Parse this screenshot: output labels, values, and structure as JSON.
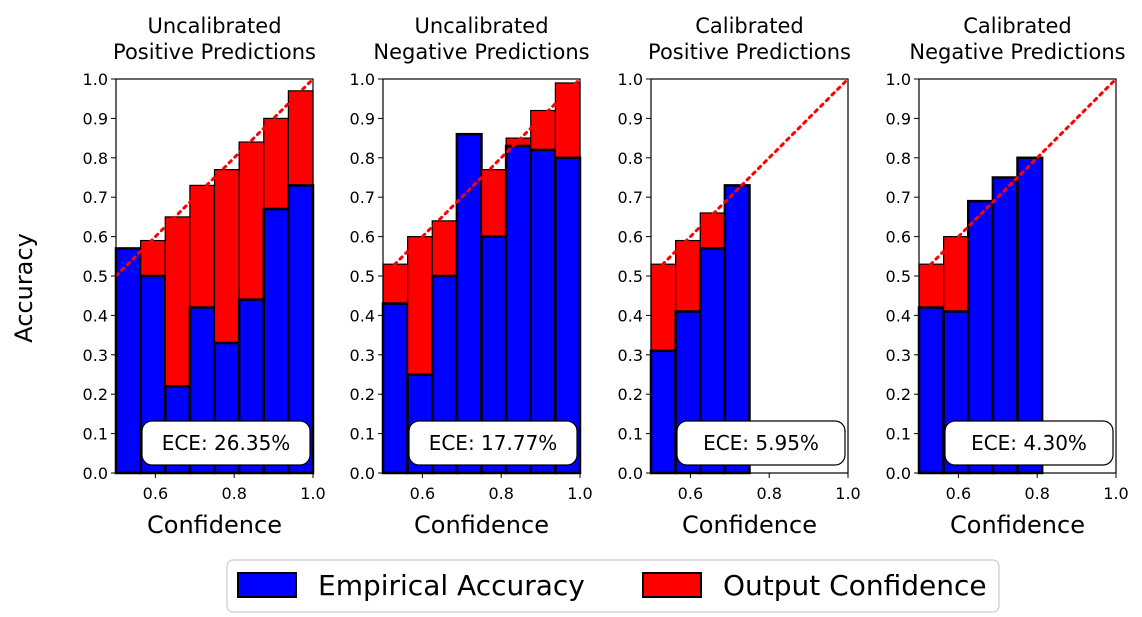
{
  "figure": {
    "ylabel": "Accuracy",
    "legend": {
      "placement": "bottom-center",
      "entries": [
        {
          "label": "Empirical Accuracy",
          "color": "#0000ff"
        },
        {
          "label": "Output Confidence",
          "color": "#ff0000"
        }
      ]
    }
  },
  "chart_data": [
    {
      "type": "bar",
      "title_line1": "Uncalibrated",
      "title_line2": "Positive Predictions",
      "xlabel": "Confidence",
      "xlim": [
        0.5,
        1.0
      ],
      "ylim": [
        0.0,
        1.0
      ],
      "bin_edges": [
        0.5,
        0.5625,
        0.625,
        0.6875,
        0.75,
        0.8125,
        0.875,
        0.9375,
        1.0
      ],
      "series": [
        {
          "name": "Empirical Accuracy",
          "values": [
            0.57,
            0.5,
            0.22,
            0.42,
            0.33,
            0.44,
            0.67,
            0.73
          ]
        },
        {
          "name": "Output Confidence",
          "values": [
            0.55,
            0.59,
            0.65,
            0.73,
            0.77,
            0.84,
            0.9,
            0.97
          ]
        }
      ],
      "xticks": [
        "0.6",
        "0.8",
        "1.0"
      ],
      "yticks": [
        "0.0",
        "0.1",
        "0.2",
        "0.3",
        "0.4",
        "0.5",
        "0.6",
        "0.7",
        "0.8",
        "0.9",
        "1.0"
      ],
      "ece_label": "ECE: 26.35%",
      "reference_line": "y = x"
    },
    {
      "type": "bar",
      "title_line1": "Uncalibrated",
      "title_line2": "Negative Predictions",
      "xlabel": "Confidence",
      "xlim": [
        0.5,
        1.0
      ],
      "ylim": [
        0.0,
        1.0
      ],
      "bin_edges": [
        0.5,
        0.5625,
        0.625,
        0.6875,
        0.75,
        0.8125,
        0.875,
        0.9375,
        1.0
      ],
      "series": [
        {
          "name": "Empirical Accuracy",
          "values": [
            0.43,
            0.25,
            0.5,
            0.86,
            0.6,
            0.83,
            0.82,
            0.8
          ]
        },
        {
          "name": "Output Confidence",
          "values": [
            0.53,
            0.6,
            0.64,
            0.7,
            0.77,
            0.85,
            0.92,
            0.99
          ]
        }
      ],
      "xticks": [
        "0.6",
        "0.8",
        "1.0"
      ],
      "yticks": [
        "0.0",
        "0.1",
        "0.2",
        "0.3",
        "0.4",
        "0.5",
        "0.6",
        "0.7",
        "0.8",
        "0.9",
        "1.0"
      ],
      "ece_label": "ECE: 17.77%",
      "reference_line": "y = x"
    },
    {
      "type": "bar",
      "title_line1": "Calibrated",
      "title_line2": "Positive Predictions",
      "xlabel": "Confidence",
      "xlim": [
        0.5,
        1.0
      ],
      "ylim": [
        0.0,
        1.0
      ],
      "bin_edges": [
        0.5,
        0.5625,
        0.625,
        0.6875,
        0.75
      ],
      "series": [
        {
          "name": "Empirical Accuracy",
          "values": [
            0.31,
            0.41,
            0.57,
            0.73
          ]
        },
        {
          "name": "Output Confidence",
          "values": [
            0.53,
            0.59,
            0.66,
            0.72
          ]
        }
      ],
      "xticks": [
        "0.6",
        "0.8",
        "1.0"
      ],
      "yticks": [
        "0.0",
        "0.1",
        "0.2",
        "0.3",
        "0.4",
        "0.5",
        "0.6",
        "0.7",
        "0.8",
        "0.9",
        "1.0"
      ],
      "ece_label": "ECE: 5.95%",
      "reference_line": "y = x"
    },
    {
      "type": "bar",
      "title_line1": "Calibrated",
      "title_line2": "Negative Predictions",
      "xlabel": "Confidence",
      "xlim": [
        0.5,
        1.0
      ],
      "ylim": [
        0.0,
        1.0
      ],
      "bin_edges": [
        0.5,
        0.5625,
        0.625,
        0.6875,
        0.75,
        0.8125
      ],
      "series": [
        {
          "name": "Empirical Accuracy",
          "values": [
            0.42,
            0.41,
            0.69,
            0.75,
            0.8
          ]
        },
        {
          "name": "Output Confidence",
          "values": [
            0.53,
            0.6,
            0.68,
            0.74,
            0.8
          ]
        }
      ],
      "xticks": [
        "0.6",
        "0.8",
        "1.0"
      ],
      "yticks": [
        "0.0",
        "0.1",
        "0.2",
        "0.3",
        "0.4",
        "0.5",
        "0.6",
        "0.7",
        "0.8",
        "0.9",
        "1.0"
      ],
      "ece_label": "ECE: 4.30%",
      "reference_line": "y = x"
    }
  ]
}
